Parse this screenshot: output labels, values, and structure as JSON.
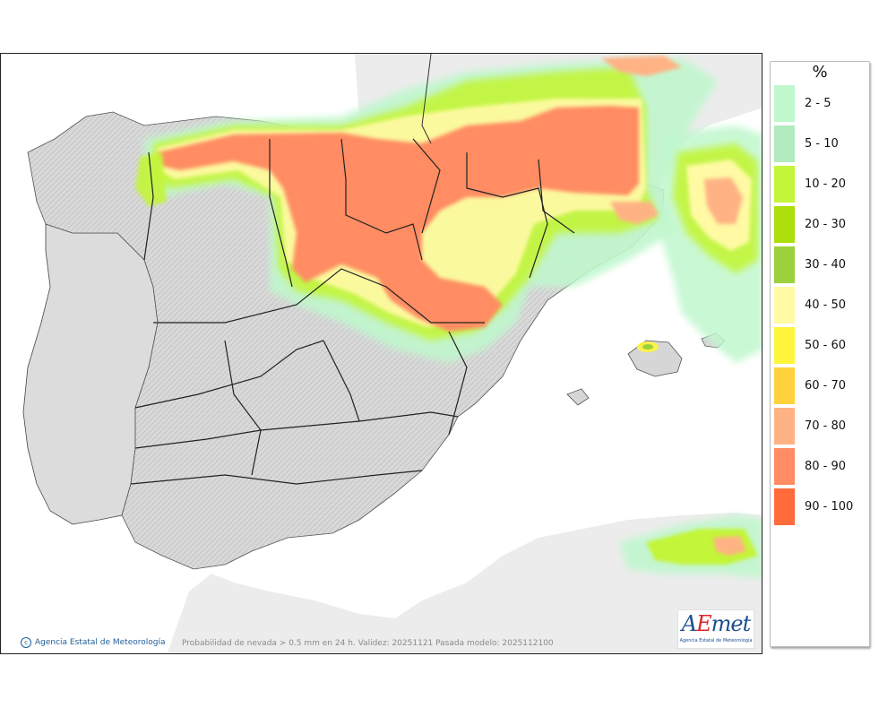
{
  "legend": {
    "unit": "%",
    "items": [
      {
        "label": "2 - 5",
        "color": "#c0f7cd"
      },
      {
        "label": "5 - 10",
        "color": "#b2ebbf"
      },
      {
        "label": "10 - 20",
        "color": "#c3f539"
      },
      {
        "label": "20 - 30",
        "color": "#acdf0c"
      },
      {
        "label": "30 - 40",
        "color": "#9bd13c"
      },
      {
        "label": "40 - 50",
        "color": "#fffaa3"
      },
      {
        "label": "50 - 60",
        "color": "#fff53d"
      },
      {
        "label": "60 - 70",
        "color": "#ffd23d"
      },
      {
        "label": "70 - 80",
        "color": "#ffb284"
      },
      {
        "label": "80 - 90",
        "color": "#ff8c62"
      },
      {
        "label": "90 - 100",
        "color": "#ff6b3a"
      }
    ]
  },
  "footer": {
    "credit": "Agencia Estatal de Meteorología",
    "caption": "Probabilidad de nevada > 0.5 mm en 24 h. Validez: 20251121 Pasada modelo: 2025112100"
  },
  "logo": {
    "text_a": "A",
    "text_e": "E",
    "text_met": "met",
    "subtitle": "Agencia Estatal de Meteorología"
  },
  "colors": {
    "land": "#d6d6d6",
    "land_light": "#e4e4e4",
    "sea": "#ffffff",
    "foreign_land": "#ececec",
    "border": "#222222"
  }
}
